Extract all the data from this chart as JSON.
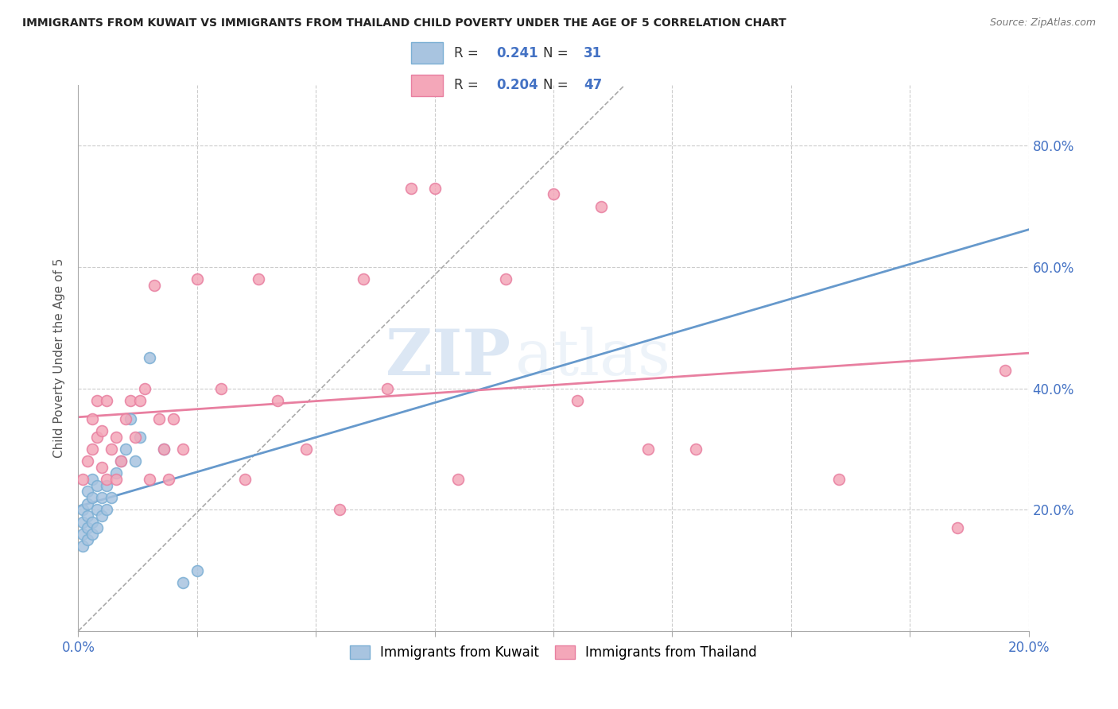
{
  "title": "IMMIGRANTS FROM KUWAIT VS IMMIGRANTS FROM THAILAND CHILD POVERTY UNDER THE AGE OF 5 CORRELATION CHART",
  "source": "Source: ZipAtlas.com",
  "ylabel": "Child Poverty Under the Age of 5",
  "xlim": [
    0.0,
    0.2
  ],
  "ylim": [
    0.0,
    0.9
  ],
  "xticks": [
    0.0,
    0.025,
    0.05,
    0.075,
    0.1,
    0.125,
    0.15,
    0.175,
    0.2
  ],
  "xtick_labels": [
    "0.0%",
    "",
    "",
    "",
    "",
    "",
    "",
    "",
    "20.0%"
  ],
  "yticks": [
    0.0,
    0.2,
    0.4,
    0.6,
    0.8
  ],
  "ytick_labels_right": [
    "",
    "20.0%",
    "40.0%",
    "60.0%",
    "80.0%"
  ],
  "kuwait_color": "#a8c4e0",
  "kuwait_edge": "#7bafd4",
  "kuwait_line_color": "#6699cc",
  "thailand_color": "#f4a7b9",
  "thailand_edge": "#e87fa0",
  "thailand_line_color": "#e87fa0",
  "kuwait_R": 0.241,
  "kuwait_N": 31,
  "thailand_R": 0.204,
  "thailand_N": 47,
  "watermark_zip": "ZIP",
  "watermark_atlas": "atlas",
  "background_color": "#ffffff",
  "grid_color": "#cccccc",
  "kuwait_x": [
    0.001,
    0.001,
    0.001,
    0.001,
    0.002,
    0.002,
    0.002,
    0.002,
    0.002,
    0.003,
    0.003,
    0.003,
    0.003,
    0.004,
    0.004,
    0.004,
    0.005,
    0.005,
    0.006,
    0.006,
    0.007,
    0.008,
    0.009,
    0.01,
    0.011,
    0.012,
    0.013,
    0.015,
    0.018,
    0.022,
    0.025
  ],
  "kuwait_y": [
    0.14,
    0.16,
    0.18,
    0.2,
    0.15,
    0.17,
    0.19,
    0.21,
    0.23,
    0.16,
    0.18,
    0.22,
    0.25,
    0.17,
    0.2,
    0.24,
    0.19,
    0.22,
    0.2,
    0.24,
    0.22,
    0.26,
    0.28,
    0.3,
    0.35,
    0.28,
    0.32,
    0.45,
    0.3,
    0.08,
    0.1
  ],
  "thailand_x": [
    0.001,
    0.002,
    0.003,
    0.003,
    0.004,
    0.004,
    0.005,
    0.005,
    0.006,
    0.006,
    0.007,
    0.008,
    0.008,
    0.009,
    0.01,
    0.011,
    0.012,
    0.013,
    0.014,
    0.015,
    0.016,
    0.017,
    0.018,
    0.019,
    0.02,
    0.022,
    0.025,
    0.03,
    0.035,
    0.038,
    0.042,
    0.048,
    0.055,
    0.06,
    0.065,
    0.07,
    0.075,
    0.08,
    0.09,
    0.1,
    0.105,
    0.11,
    0.12,
    0.13,
    0.16,
    0.185,
    0.195
  ],
  "thailand_y": [
    0.25,
    0.28,
    0.3,
    0.35,
    0.32,
    0.38,
    0.27,
    0.33,
    0.25,
    0.38,
    0.3,
    0.25,
    0.32,
    0.28,
    0.35,
    0.38,
    0.32,
    0.38,
    0.4,
    0.25,
    0.57,
    0.35,
    0.3,
    0.25,
    0.35,
    0.3,
    0.58,
    0.4,
    0.25,
    0.58,
    0.38,
    0.3,
    0.2,
    0.58,
    0.4,
    0.73,
    0.73,
    0.25,
    0.58,
    0.72,
    0.38,
    0.7,
    0.3,
    0.3,
    0.25,
    0.17,
    0.43
  ]
}
